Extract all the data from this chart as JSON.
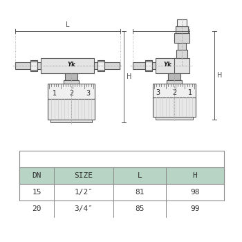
{
  "bg_color": "#ffffff",
  "line_color": "#555555",
  "fill_light": "#f0f0f0",
  "fill_mid": "#d8d8d8",
  "fill_dark": "#b8b8b8",
  "fill_body": "#e4e4e4",
  "table_header_bg": "#b8d4c4",
  "table_border_color": "#888888",
  "table_headers": [
    "DN",
    "SIZE",
    "L",
    "H"
  ],
  "table_rows": [
    [
      "15",
      "1/2″",
      "81",
      "98"
    ],
    [
      "20",
      "3/4″",
      "85",
      "99"
    ]
  ],
  "figsize": [
    3.5,
    3.5
  ],
  "dpi": 100
}
